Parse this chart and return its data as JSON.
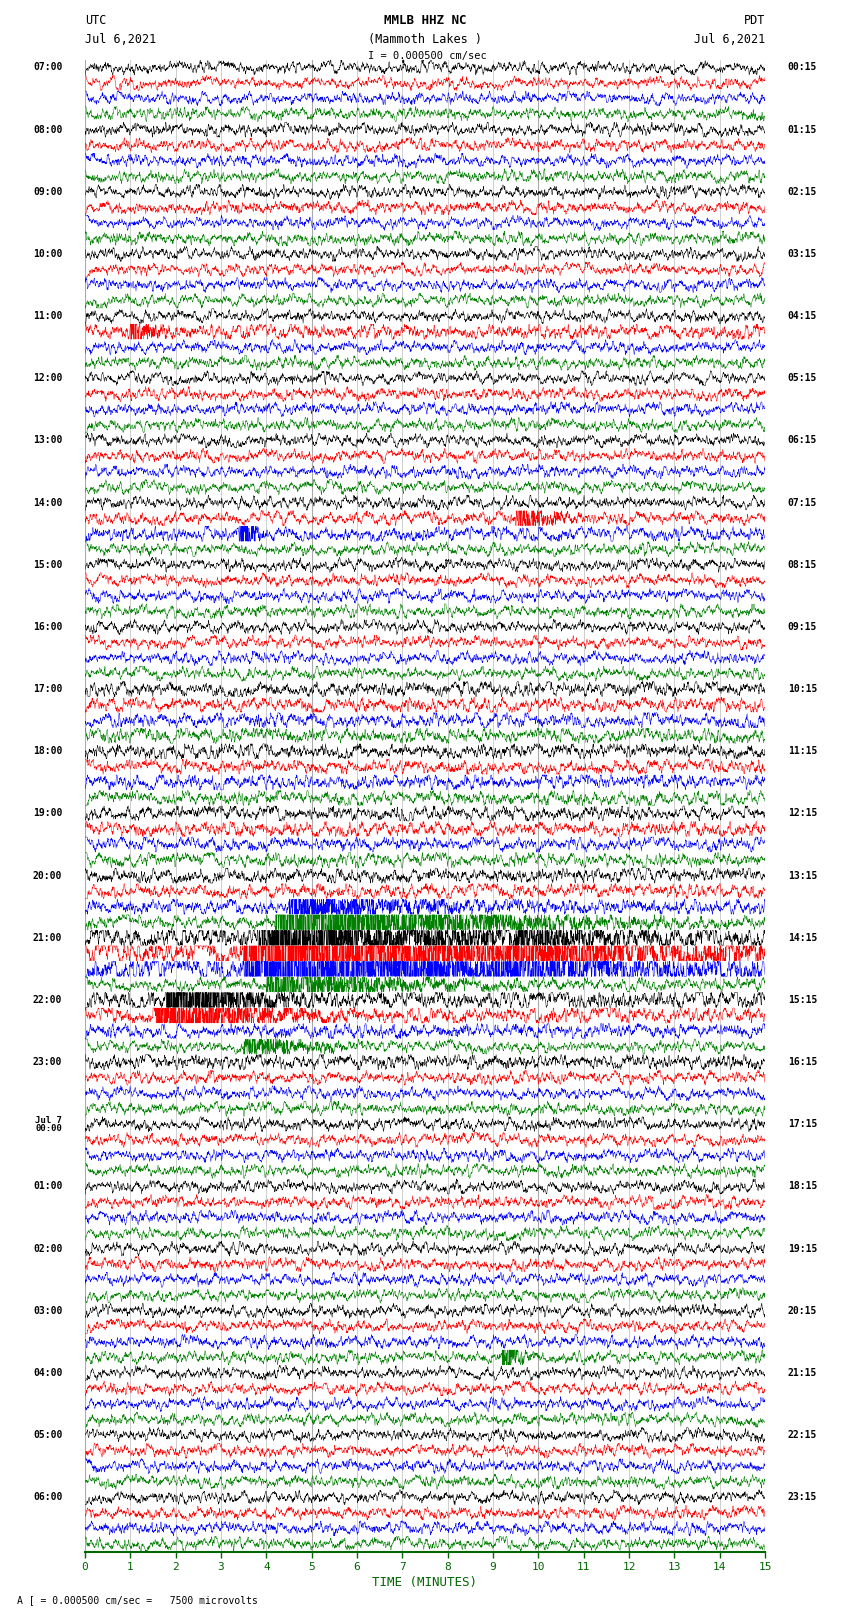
{
  "title_line1": "MMLB HHZ NC",
  "title_line2": "(Mammoth Lakes )",
  "scale_label": "I = 0.000500 cm/sec",
  "bottom_label": "TIME (MINUTES)",
  "bottom_note": "A [ = 0.000500 cm/sec =   7500 microvolts",
  "x_ticks": [
    0,
    1,
    2,
    3,
    4,
    5,
    6,
    7,
    8,
    9,
    10,
    11,
    12,
    13,
    14,
    15
  ],
  "xlim": [
    0,
    15
  ],
  "background_color": "#ffffff",
  "trace_colors": [
    "black",
    "red",
    "blue",
    "green"
  ],
  "left_times": [
    "07:00",
    "",
    "",
    "",
    "08:00",
    "",
    "",
    "",
    "09:00",
    "",
    "",
    "",
    "10:00",
    "",
    "",
    "",
    "11:00",
    "",
    "",
    "",
    "12:00",
    "",
    "",
    "",
    "13:00",
    "",
    "",
    "",
    "14:00",
    "",
    "",
    "",
    "15:00",
    "",
    "",
    "",
    "16:00",
    "",
    "",
    "",
    "17:00",
    "",
    "",
    "",
    "18:00",
    "",
    "",
    "",
    "19:00",
    "",
    "",
    "",
    "20:00",
    "",
    "",
    "",
    "21:00",
    "",
    "",
    "",
    "22:00",
    "",
    "",
    "",
    "23:00",
    "",
    "",
    "",
    "Jul 7\n00:00",
    "",
    "",
    "",
    "01:00",
    "",
    "",
    "",
    "02:00",
    "",
    "",
    "",
    "03:00",
    "",
    "",
    "",
    "04:00",
    "",
    "",
    "",
    "05:00",
    "",
    "",
    "",
    "06:00",
    "",
    "",
    ""
  ],
  "right_times": [
    "00:15",
    "",
    "",
    "",
    "01:15",
    "",
    "",
    "",
    "02:15",
    "",
    "",
    "",
    "03:15",
    "",
    "",
    "",
    "04:15",
    "",
    "",
    "",
    "05:15",
    "",
    "",
    "",
    "06:15",
    "",
    "",
    "",
    "07:15",
    "",
    "",
    "",
    "08:15",
    "",
    "",
    "",
    "09:15",
    "",
    "",
    "",
    "10:15",
    "",
    "",
    "",
    "11:15",
    "",
    "",
    "",
    "12:15",
    "",
    "",
    "",
    "13:15",
    "",
    "",
    "",
    "14:15",
    "",
    "",
    "",
    "15:15",
    "",
    "",
    "",
    "16:15",
    "",
    "",
    "",
    "17:15",
    "",
    "",
    "",
    "18:15",
    "",
    "",
    "",
    "19:15",
    "",
    "",
    "",
    "20:15",
    "",
    "",
    "",
    "21:15",
    "",
    "",
    "",
    "22:15",
    "",
    "",
    "",
    "23:15",
    "",
    "",
    ""
  ],
  "n_rows": 96,
  "traces_per_row": 4,
  "grid_color": "#aaaaaa",
  "tick_color": "#006600",
  "label_color": "#006600"
}
